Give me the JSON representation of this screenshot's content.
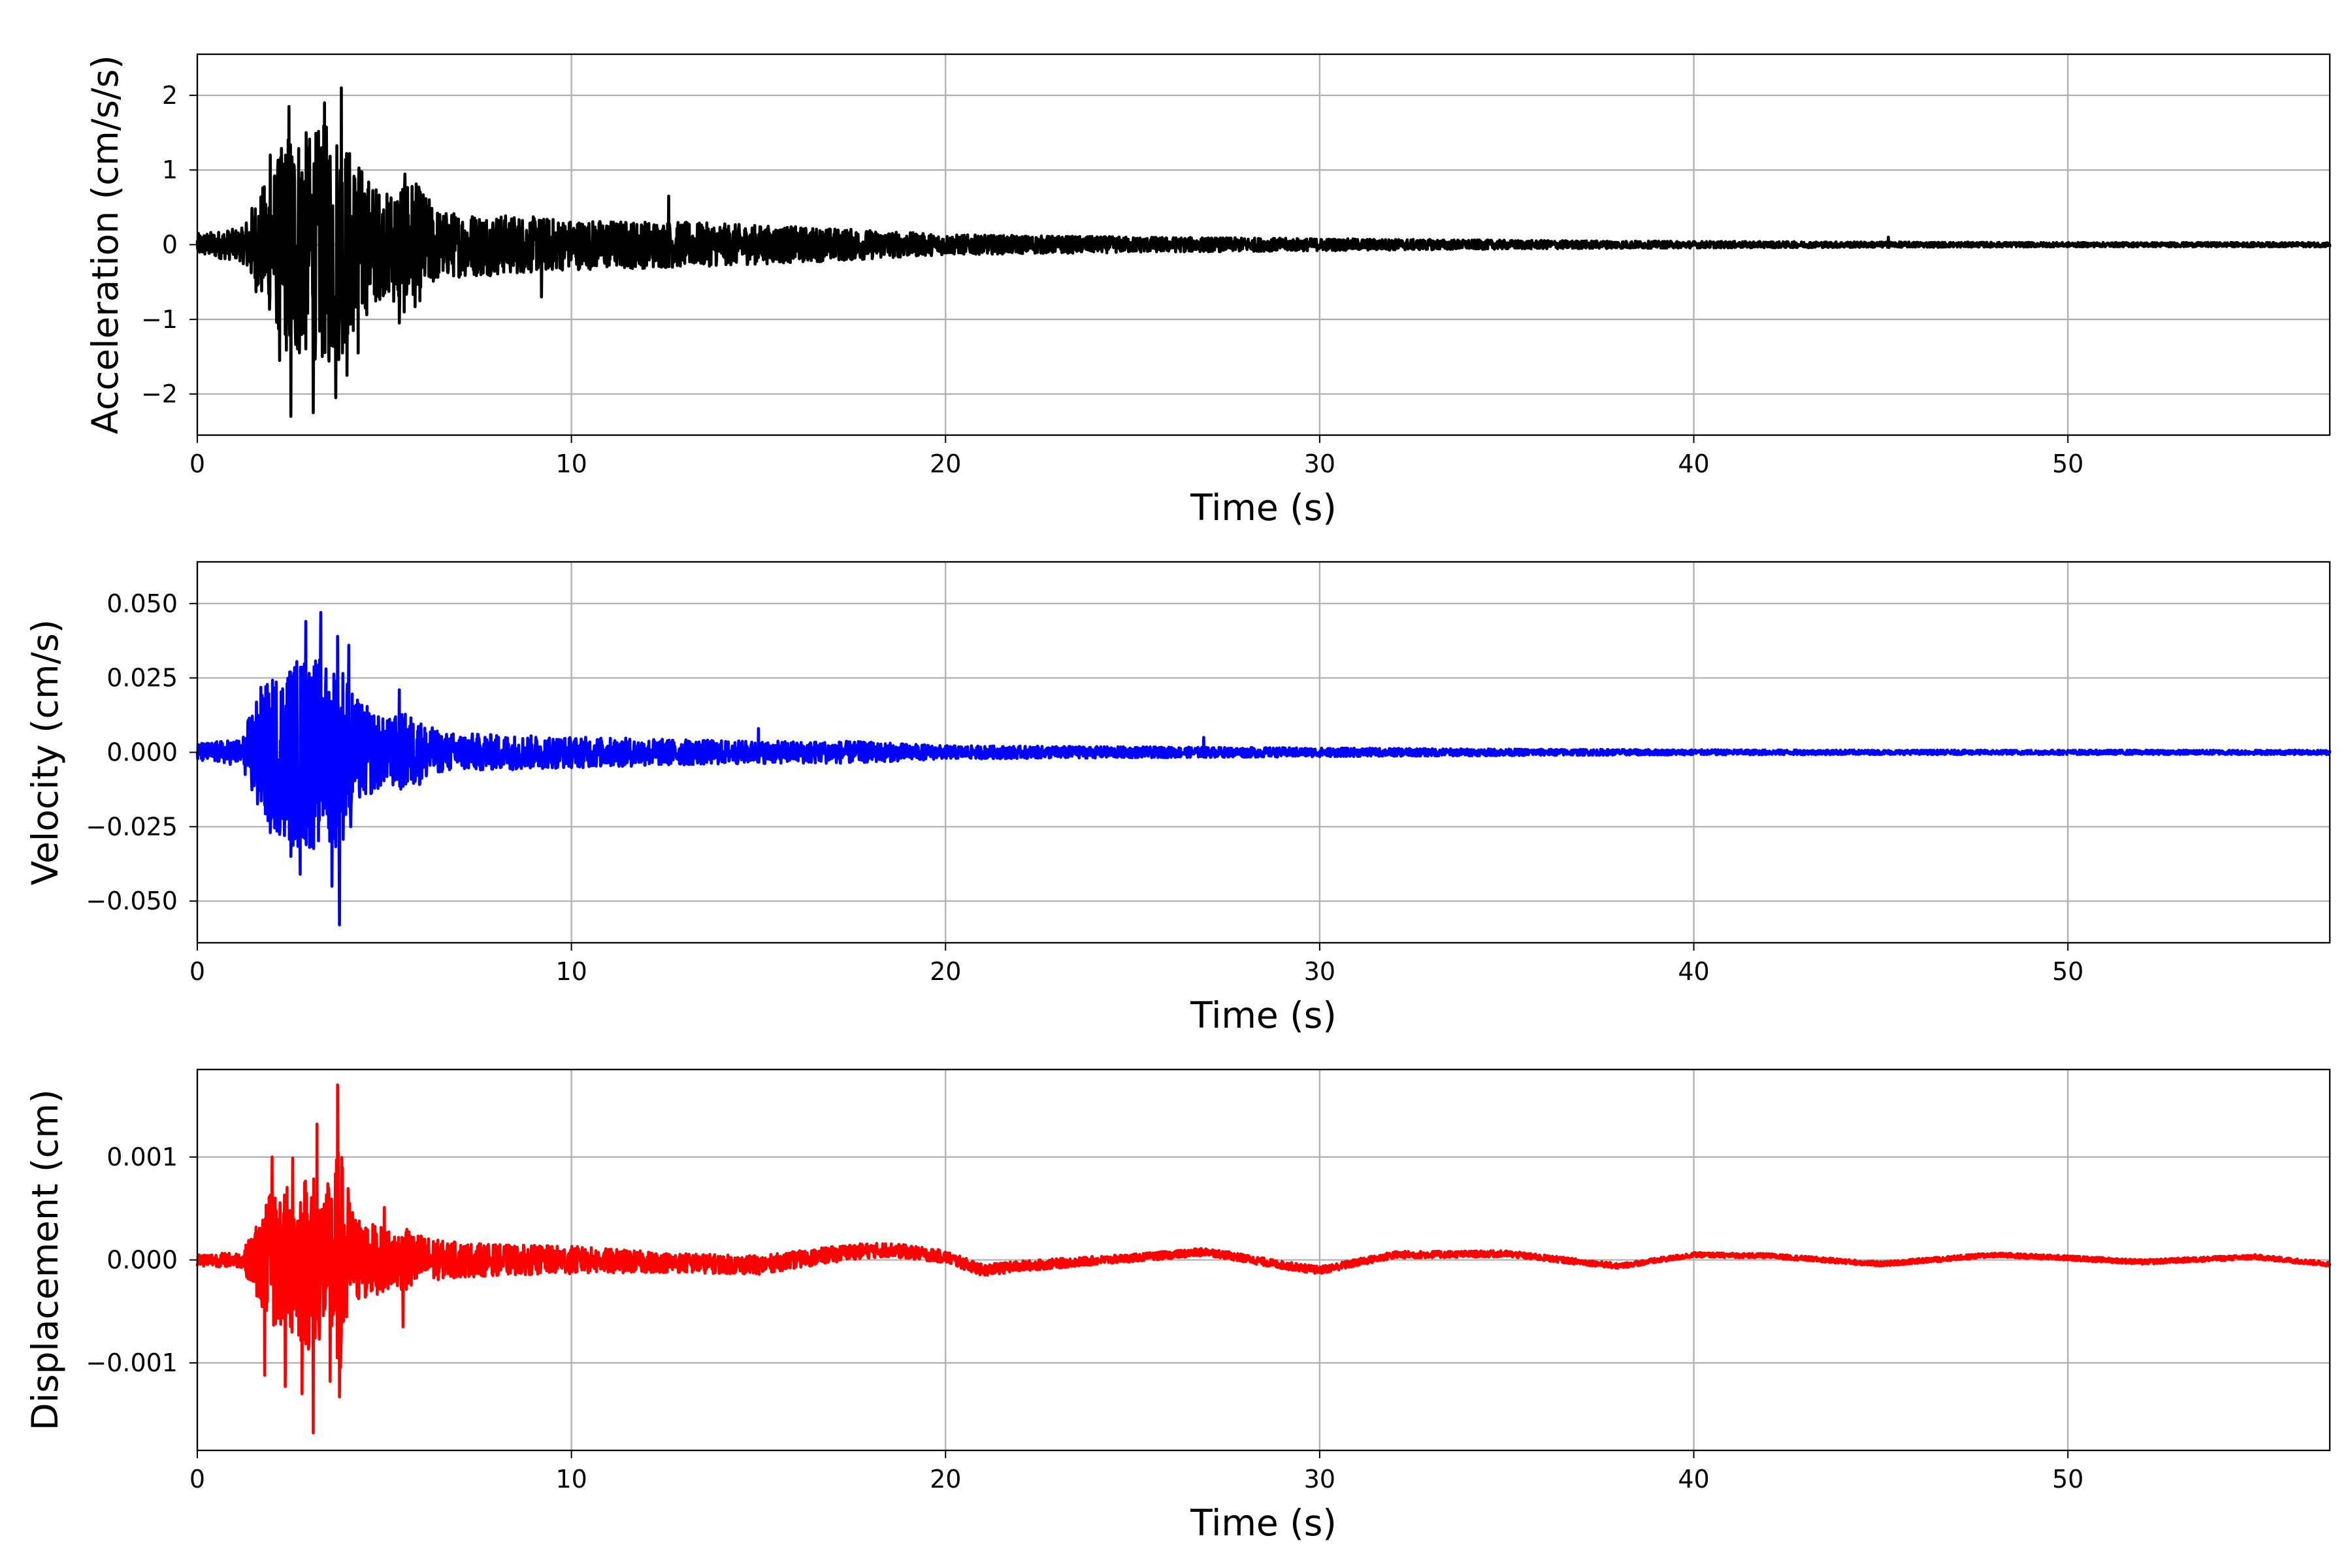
{
  "chart_data": [
    {
      "type": "line",
      "xlabel": "Time (s)",
      "ylabel": "Acceleration (cm/s/s)",
      "xlim": [
        0,
        57
      ],
      "ylim": [
        -2.55,
        2.55
      ],
      "xticks": [
        0,
        10,
        20,
        30,
        40,
        50
      ],
      "xtick_labels": [
        "0",
        "10",
        "20",
        "30",
        "40",
        "50"
      ],
      "yticks": [
        2,
        1,
        0,
        -1,
        -2
      ],
      "ytick_labels": [
        "2",
        "1",
        "0",
        "−1",
        "−2"
      ],
      "grid": true,
      "series": [
        {
          "color": "#000000",
          "envelope": {
            "t": [
              0,
              1.2,
              1.6,
              2.0,
              2.5,
              3.0,
              3.5,
              3.8,
              4.2,
              4.6,
              5.0,
              5.6,
              6.5,
              8,
              10,
              12.5,
              15,
              17.5,
              20,
              25,
              30,
              35,
              40,
              45,
              50,
              57
            ],
            "amp": [
              0.2,
              0.3,
              0.9,
              1.3,
              2.2,
              2.0,
              2.2,
              2.1,
              1.6,
              1.2,
              0.9,
              1.3,
              0.6,
              0.55,
              0.45,
              0.42,
              0.35,
              0.28,
              0.18,
              0.14,
              0.11,
              0.08,
              0.06,
              0.05,
              0.04,
              0.04
            ]
          },
          "peaks": [
            {
              "t": 1.95,
              "v": 1.2
            },
            {
              "t": 2.2,
              "v": -1.55
            },
            {
              "t": 2.45,
              "v": 1.85
            },
            {
              "t": 2.5,
              "v": -2.3
            },
            {
              "t": 3.1,
              "v": -2.25
            },
            {
              "t": 3.4,
              "v": 1.9
            },
            {
              "t": 3.7,
              "v": -2.05
            },
            {
              "t": 3.85,
              "v": 2.1
            },
            {
              "t": 4.0,
              "v": -1.75
            },
            {
              "t": 4.3,
              "v": -1.45
            },
            {
              "t": 5.4,
              "v": 1.35
            },
            {
              "t": 5.4,
              "v": -1.05
            },
            {
              "t": 9.2,
              "v": -0.7
            },
            {
              "t": 12.6,
              "v": 0.65
            },
            {
              "t": 45.2,
              "v": 0.1
            }
          ]
        }
      ]
    },
    {
      "type": "line",
      "xlabel": "Time (s)",
      "ylabel": "Velocity (cm/s)",
      "xlim": [
        0,
        57
      ],
      "ylim": [
        -0.064,
        0.064
      ],
      "xticks": [
        0,
        10,
        20,
        30,
        40,
        50
      ],
      "xtick_labels": [
        "0",
        "10",
        "20",
        "30",
        "40",
        "50"
      ],
      "yticks": [
        0.05,
        0.025,
        0,
        -0.025,
        -0.05
      ],
      "ytick_labels": [
        "0.050",
        "0.025",
        "0.000",
        "−0.025",
        "−0.050"
      ],
      "grid": true,
      "series": [
        {
          "color": "#0000ff",
          "envelope": {
            "t": [
              0,
              1.2,
              1.6,
              2.0,
              2.5,
              3.0,
              3.5,
              3.8,
              4.2,
              4.6,
              5.0,
              5.6,
              6.5,
              8,
              10,
              12.5,
              15,
              17.5,
              20,
              25,
              30,
              35,
              40,
              45,
              50,
              57
            ],
            "amp": [
              0.004,
              0.006,
              0.028,
              0.035,
              0.042,
              0.045,
              0.04,
              0.045,
              0.025,
              0.02,
              0.015,
              0.018,
              0.009,
              0.008,
              0.007,
              0.006,
              0.005,
              0.005,
              0.003,
              0.0025,
              0.002,
              0.0015,
              0.0012,
              0.001,
              0.001,
              0.001
            ]
          },
          "peaks": [
            {
              "t": 1.95,
              "v": -0.027
            },
            {
              "t": 2.5,
              "v": -0.035
            },
            {
              "t": 2.75,
              "v": -0.041
            },
            {
              "t": 2.9,
              "v": 0.044
            },
            {
              "t": 3.3,
              "v": 0.047
            },
            {
              "t": 3.6,
              "v": -0.045
            },
            {
              "t": 3.75,
              "v": 0.039
            },
            {
              "t": 3.8,
              "v": -0.058
            },
            {
              "t": 4.05,
              "v": 0.036
            },
            {
              "t": 4.1,
              "v": -0.025
            },
            {
              "t": 5.4,
              "v": 0.021
            },
            {
              "t": 15.0,
              "v": 0.008
            },
            {
              "t": 26.9,
              "v": 0.005
            }
          ]
        }
      ]
    },
    {
      "type": "line",
      "xlabel": "Time (s)",
      "ylabel": "Displacement (cm)",
      "xlim": [
        0,
        57
      ],
      "ylim": [
        -0.00185,
        0.00185
      ],
      "xticks": [
        0,
        10,
        20,
        30,
        40,
        50
      ],
      "xtick_labels": [
        "0",
        "10",
        "20",
        "30",
        "40",
        "50"
      ],
      "yticks": [
        0.001,
        0,
        -0.001
      ],
      "ytick_labels": [
        "0.001",
        "0.000",
        "−0.001"
      ],
      "grid": true,
      "series": [
        {
          "color": "#ff0000",
          "envelope": {
            "t": [
              0,
              1.2,
              1.6,
              2.0,
              2.5,
              3.0,
              3.5,
              3.8,
              4.2,
              4.6,
              5.0,
              5.6,
              6.5,
              8,
              10,
              12.5,
              15,
              17.5,
              20,
              25,
              30,
              35,
              40,
              45,
              50,
              57
            ],
            "amp": [
              8e-05,
              0.0001,
              0.0005,
              0.0009,
              0.001,
              0.0012,
              0.001,
              0.0015,
              0.0006,
              0.0005,
              0.0004,
              0.0004,
              0.00025,
              0.0002,
              0.00018,
              0.00013,
              0.00012,
              0.0001,
              8e-05,
              5e-05,
              5e-05,
              4e-05,
              3e-05,
              3e-05,
              3e-05,
              3e-05
            ]
          },
          "drift": {
            "t": [
              0,
              10,
              15,
              17.5,
              18.5,
              20,
              21,
              22,
              25,
              27,
              29,
              30,
              32,
              35,
              38,
              40,
              42,
              45,
              48,
              50,
              52,
              55,
              57
            ],
            "v": [
              0,
              0,
              -5e-05,
              8e-05,
              0.0001,
              3e-05,
              -0.0001,
              -6e-05,
              2e-05,
              8e-05,
              -5e-05,
              -0.0001,
              5e-05,
              6e-05,
              -6e-05,
              5e-05,
              4e-05,
              -4e-05,
              5e-05,
              2e-05,
              -2e-05,
              3e-05,
              -4e-05
            ]
          },
          "peaks": [
            {
              "t": 1.8,
              "v": -0.00112
            },
            {
              "t": 2.0,
              "v": 0.001
            },
            {
              "t": 2.35,
              "v": -0.00123
            },
            {
              "t": 2.55,
              "v": 0.00099
            },
            {
              "t": 2.8,
              "v": -0.0013
            },
            {
              "t": 3.1,
              "v": -0.00168
            },
            {
              "t": 3.2,
              "v": 0.00132
            },
            {
              "t": 3.55,
              "v": -0.00118
            },
            {
              "t": 3.75,
              "v": 0.0017
            },
            {
              "t": 3.8,
              "v": -0.00133
            },
            {
              "t": 5.0,
              "v": 0.00051
            },
            {
              "t": 5.5,
              "v": -0.00065
            }
          ]
        }
      ]
    }
  ]
}
